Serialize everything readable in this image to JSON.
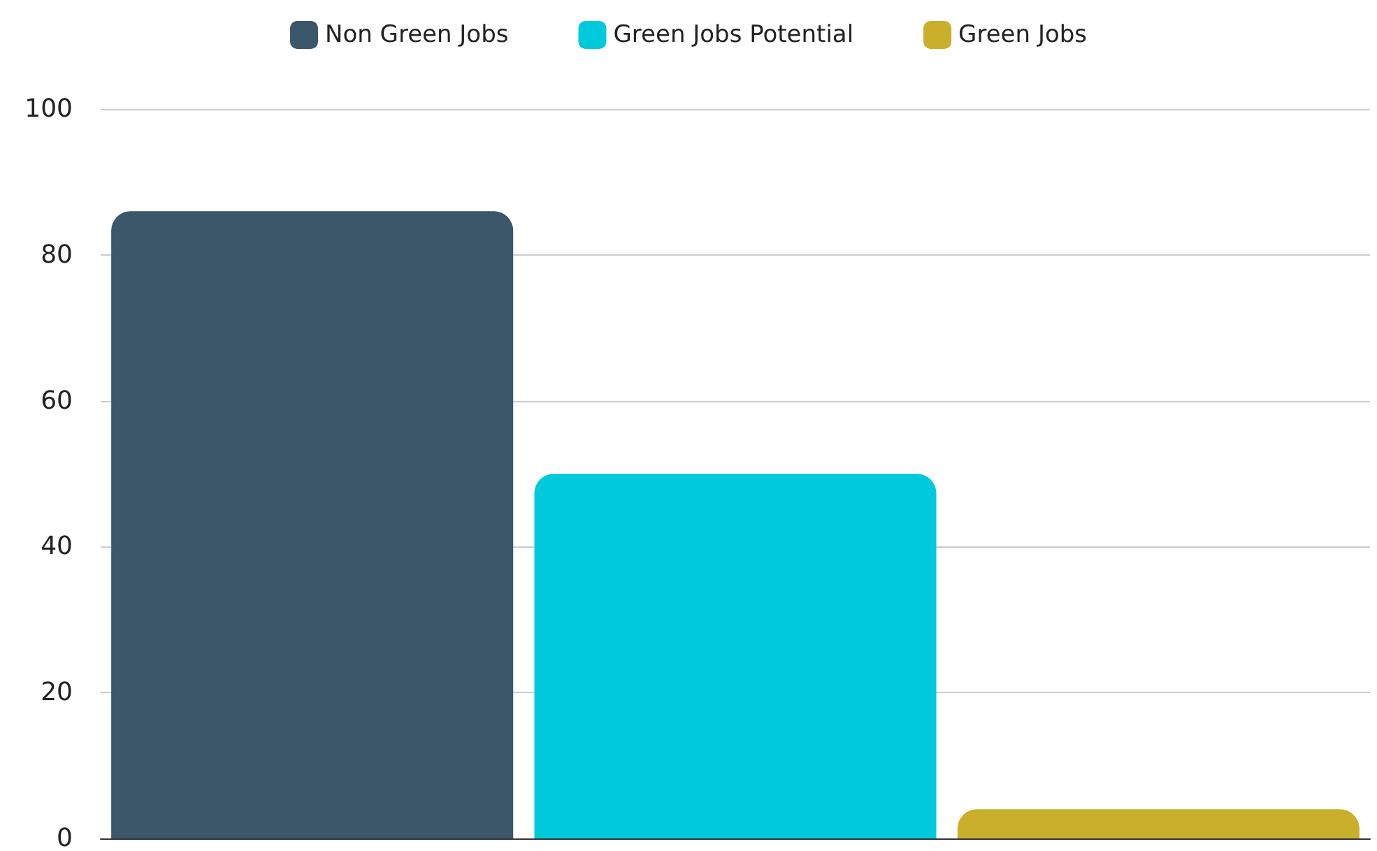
{
  "chart_data": {
    "type": "bar",
    "categories": [
      null,
      null,
      null
    ],
    "series": [
      {
        "name": "Non Green Jobs",
        "color": "#3c566a",
        "values": [
          86,
          null,
          null
        ]
      },
      {
        "name": "Green Jobs Potential",
        "color": "#00c9dc",
        "values": [
          null,
          50,
          null
        ]
      },
      {
        "name": "Green Jobs",
        "color": "#c9af2c",
        "values": [
          null,
          null,
          4
        ]
      }
    ],
    "ylim": [
      0,
      100
    ],
    "yticks": [
      0,
      20,
      40,
      60,
      80,
      100
    ],
    "grid": "y",
    "legend": "top",
    "tick_labels": "y"
  }
}
